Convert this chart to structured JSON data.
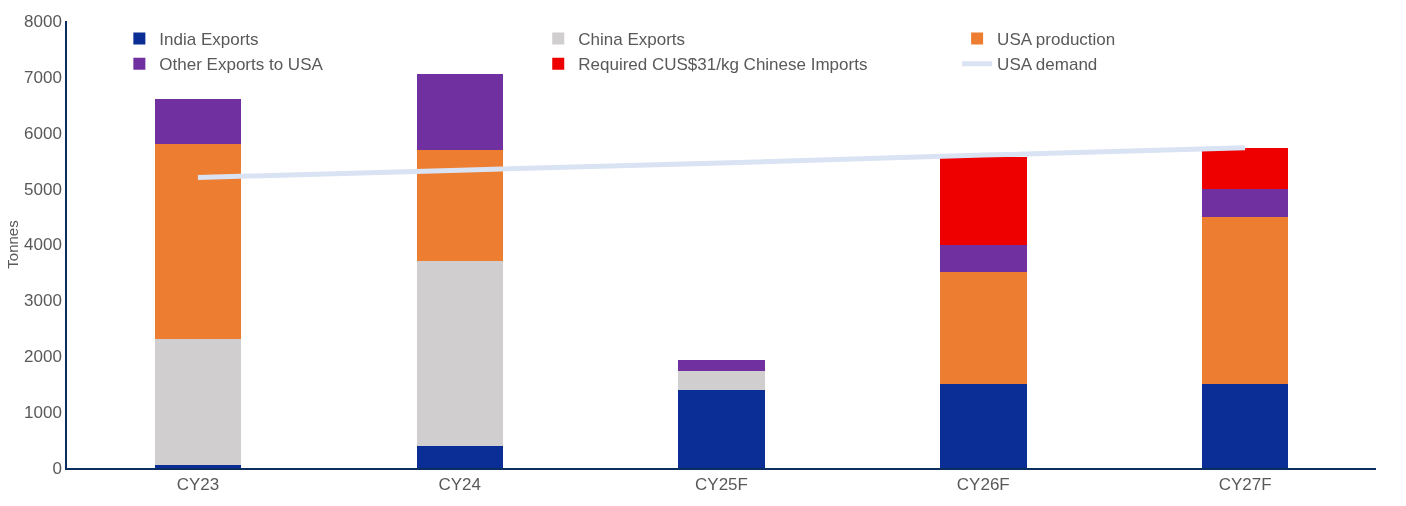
{
  "chart_data": {
    "type": "bar",
    "stacked": true,
    "ylabel": "Tonnes",
    "categories": [
      "CY23",
      "CY24",
      "CY25F",
      "CY26F",
      "CY27F"
    ],
    "series": [
      {
        "name": "India Exports",
        "color": "#0b2d96",
        "values": [
          50,
          400,
          1400,
          1500,
          1500
        ]
      },
      {
        "name": "China Exports",
        "color": "#d0cecf",
        "values": [
          2250,
          3300,
          330,
          null,
          null
        ]
      },
      {
        "name": "USA production",
        "color": "#ed7d31",
        "values": [
          3500,
          2000,
          null,
          2000,
          3000
        ]
      },
      {
        "name": "Other Exports to USA",
        "color": "#7030a0",
        "values": [
          800,
          1350,
          200,
          500,
          500
        ]
      },
      {
        "name": "Required CUS$31/kg Chinese Imports",
        "color": "#ee0000",
        "values": [
          null,
          null,
          null,
          1570,
          720
        ]
      },
      {
        "name": "USA demand",
        "type": "line",
        "color": "#dae3f3",
        "values": [
          5200,
          5330,
          5460,
          5600,
          5730
        ]
      }
    ],
    "ylim": [
      0,
      8000
    ],
    "yticks": [
      0,
      1000,
      2000,
      3000,
      4000,
      5000,
      6000,
      7000,
      8000
    ],
    "legend": "top",
    "marker": "none"
  }
}
